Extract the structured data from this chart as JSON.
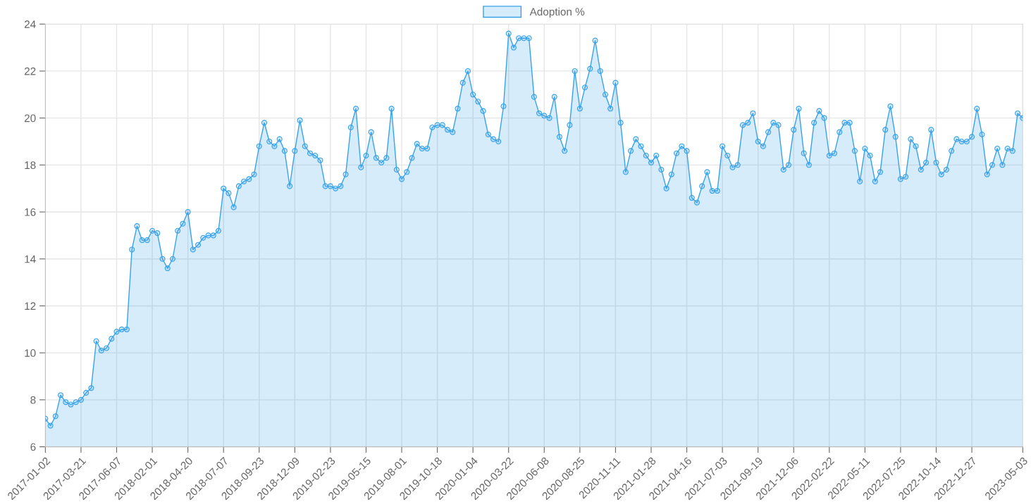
{
  "chart_data": {
    "type": "area",
    "categories": [
      "2017-01-02",
      null,
      null,
      null,
      null,
      null,
      null,
      "2017-03-21",
      null,
      null,
      null,
      null,
      null,
      null,
      "2017-06-07",
      null,
      null,
      null,
      null,
      null,
      null,
      "2018-02-01",
      null,
      null,
      null,
      null,
      null,
      null,
      "2018-04-20",
      null,
      null,
      null,
      null,
      null,
      null,
      "2018-07-07",
      null,
      null,
      null,
      null,
      null,
      null,
      "2018-09-23",
      null,
      null,
      null,
      null,
      null,
      null,
      "2018-12-09",
      null,
      null,
      null,
      null,
      null,
      null,
      "2019-02-23",
      null,
      null,
      null,
      null,
      null,
      null,
      "2019-05-15",
      null,
      null,
      null,
      null,
      null,
      null,
      "2019-08-01",
      null,
      null,
      null,
      null,
      null,
      null,
      "2019-10-18",
      null,
      null,
      null,
      null,
      null,
      null,
      "2020-01-04",
      null,
      null,
      null,
      null,
      null,
      null,
      "2020-03-22",
      null,
      null,
      null,
      null,
      null,
      null,
      "2020-06-08",
      null,
      null,
      null,
      null,
      null,
      null,
      "2020-08-25",
      null,
      null,
      null,
      null,
      null,
      null,
      "2020-11-11",
      null,
      null,
      null,
      null,
      null,
      null,
      "2021-01-28",
      null,
      null,
      null,
      null,
      null,
      null,
      "2021-04-16",
      null,
      null,
      null,
      null,
      null,
      null,
      "2021-07-03",
      null,
      null,
      null,
      null,
      null,
      null,
      "2021-09-19",
      null,
      null,
      null,
      null,
      null,
      null,
      "2021-12-06",
      null,
      null,
      null,
      null,
      null,
      null,
      "2022-02-22",
      null,
      null,
      null,
      null,
      null,
      null,
      "2022-05-11",
      null,
      null,
      null,
      null,
      null,
      null,
      "2022-07-25",
      null,
      null,
      null,
      null,
      null,
      null,
      "2022-10-14",
      null,
      null,
      null,
      null,
      null,
      null,
      "2022-12-27",
      null,
      null,
      null,
      null,
      null,
      null,
      null,
      null,
      null,
      "2023-05-03"
    ],
    "series": [
      {
        "name": "Adoption %",
        "color": "#36a2eb",
        "values": [
          7.2,
          6.9,
          7.3,
          8.2,
          7.9,
          7.8,
          7.9,
          8.0,
          8.3,
          8.5,
          10.5,
          10.1,
          10.2,
          10.6,
          10.9,
          11.0,
          11.0,
          14.4,
          15.4,
          14.8,
          14.8,
          15.2,
          15.1,
          14.0,
          13.6,
          14.0,
          15.2,
          15.5,
          16.0,
          14.4,
          14.6,
          14.9,
          15.0,
          15.0,
          15.2,
          17.0,
          16.8,
          16.2,
          17.1,
          17.3,
          17.4,
          17.6,
          18.8,
          19.8,
          19.0,
          18.8,
          19.1,
          18.6,
          17.1,
          18.6,
          19.9,
          18.8,
          18.5,
          18.4,
          18.2,
          17.1,
          17.1,
          17.0,
          17.1,
          17.6,
          19.6,
          20.4,
          17.9,
          18.4,
          19.4,
          18.3,
          18.1,
          18.3,
          20.4,
          17.8,
          17.4,
          17.7,
          18.3,
          18.9,
          18.7,
          18.7,
          19.6,
          19.7,
          19.7,
          19.5,
          19.4,
          20.4,
          21.5,
          22.0,
          21.0,
          20.7,
          20.3,
          19.3,
          19.1,
          19.0,
          20.5,
          23.6,
          23.0,
          23.4,
          23.4,
          23.4,
          20.9,
          20.2,
          20.1,
          20.0,
          20.9,
          19.2,
          18.6,
          19.7,
          22.0,
          20.4,
          21.3,
          22.1,
          23.3,
          22.0,
          21.0,
          20.4,
          21.5,
          19.8,
          17.7,
          18.6,
          19.1,
          18.8,
          18.4,
          18.1,
          18.4,
          17.8,
          17.0,
          17.6,
          18.5,
          18.8,
          18.6,
          16.6,
          16.4,
          17.1,
          17.7,
          16.9,
          16.9,
          18.8,
          18.4,
          17.9,
          18.0,
          19.7,
          19.8,
          20.2,
          19.0,
          18.8,
          19.4,
          19.8,
          19.7,
          17.8,
          18.0,
          19.5,
          20.4,
          18.5,
          18.0,
          19.8,
          20.3,
          20.0,
          18.4,
          18.5,
          19.4,
          19.8,
          19.8,
          18.6,
          17.3,
          18.7,
          18.4,
          17.3,
          17.7,
          19.5,
          20.5,
          19.2,
          17.4,
          17.5,
          19.1,
          18.8,
          17.8,
          18.1,
          19.5,
          18.1,
          17.6,
          17.8,
          18.6,
          19.1,
          19.0,
          19.0,
          19.2,
          20.4,
          19.3,
          17.6,
          18.0,
          18.7,
          18.0,
          18.7,
          18.6,
          20.2,
          20.0
        ]
      }
    ],
    "ylim": [
      6,
      24
    ],
    "yticks": [
      6,
      8,
      10,
      12,
      14,
      16,
      18,
      20,
      22,
      24
    ],
    "grid": true,
    "legend": "top",
    "marker": "circle",
    "line_style": "solid"
  }
}
